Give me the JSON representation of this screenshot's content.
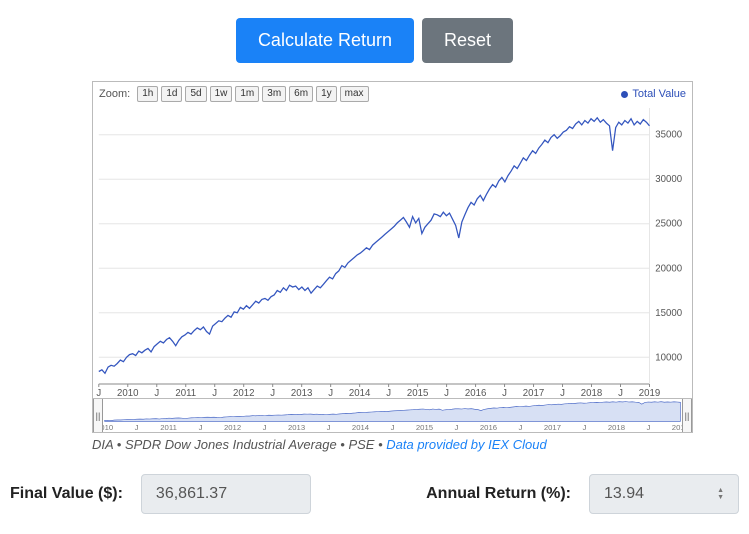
{
  "buttons": {
    "calculate": "Calculate Return",
    "reset": "Reset"
  },
  "chart": {
    "type": "line",
    "zoom_label": "Zoom:",
    "zoom_options": [
      "1h",
      "1d",
      "5d",
      "1w",
      "1m",
      "3m",
      "6m",
      "1y",
      "max"
    ],
    "legend_label": "Total Value",
    "series_color": "#3456bf",
    "grid_color": "#e6e6e6",
    "axis_color": "#888888",
    "y_ticks": [
      10000,
      15000,
      20000,
      25000,
      30000,
      35000
    ],
    "ylim": [
      7000,
      38000
    ],
    "x_labels": [
      "J",
      "2010",
      "J",
      "2011",
      "J",
      "2012",
      "J",
      "2013",
      "J",
      "2014",
      "J",
      "2015",
      "J",
      "2016",
      "J",
      "2017",
      "J",
      "2018",
      "J",
      "2019"
    ],
    "nav_x_labels": [
      "2010",
      "J",
      "2011",
      "J",
      "2012",
      "J",
      "2013",
      "J",
      "2014",
      "J",
      "2015",
      "J",
      "2016",
      "J",
      "2017",
      "J",
      "2018",
      "J",
      "2019"
    ],
    "nav_fill_color": "#d7e0f4",
    "tick_label_fontsize": 10,
    "data": [
      8400,
      8600,
      8200,
      8900,
      9100,
      9000,
      9300,
      9700,
      9500,
      10000,
      10300,
      10400,
      10200,
      10700,
      10500,
      10800,
      11000,
      10600,
      11200,
      11500,
      11800,
      11600,
      12000,
      12200,
      11800,
      11300,
      11900,
      12300,
      12500,
      12800,
      12600,
      13000,
      13300,
      13100,
      13400,
      12900,
      12600,
      13500,
      13800,
      14100,
      14000,
      14400,
      14700,
      14500,
      15100,
      15000,
      15600,
      15400,
      15800,
      15500,
      15900,
      16300,
      16100,
      16500,
      16600,
      16400,
      16800,
      17000,
      17500,
      17300,
      17800,
      17500,
      18100,
      17900,
      18000,
      17600,
      17900,
      17500,
      17800,
      17200,
      17600,
      18000,
      17800,
      18200,
      18600,
      19000,
      18800,
      19400,
      19700,
      20300,
      20100,
      20600,
      20900,
      21200,
      21500,
      21700,
      22000,
      22300,
      22100,
      22600,
      22900,
      23200,
      23500,
      23800,
      24100,
      24400,
      24700,
      25100,
      25400,
      25700,
      25200,
      24600,
      25800,
      25100,
      25600,
      23900,
      24600,
      25000,
      25400,
      26100,
      26000,
      25800,
      26300,
      25900,
      26200,
      25500,
      24800,
      23400,
      25200,
      26000,
      26800,
      27400,
      27100,
      27800,
      28200,
      27600,
      28300,
      28900,
      29400,
      29100,
      29800,
      30200,
      29700,
      30400,
      30900,
      31500,
      31200,
      31800,
      32400,
      32100,
      32700,
      33200,
      32900,
      33500,
      33900,
      34400,
      34100,
      34700,
      35000,
      34600,
      34900,
      35300,
      35500,
      35900,
      35700,
      36200,
      36500,
      36100,
      36600,
      36300,
      36800,
      36500,
      36900,
      36400,
      36700,
      36300,
      36000,
      33200,
      35800,
      36400,
      36100,
      36600,
      36300,
      36800,
      36100,
      36500,
      36200,
      36700,
      36400,
      36000
    ]
  },
  "caption": {
    "prefix": "DIA • SPDR Dow Jones Industrial Average • PSE • ",
    "link": "Data provided by IEX Cloud"
  },
  "results": {
    "final_label": "Final Value ($):",
    "final_value": "36,861.37",
    "annual_label": "Annual Return (%):",
    "annual_value": "13.94"
  }
}
